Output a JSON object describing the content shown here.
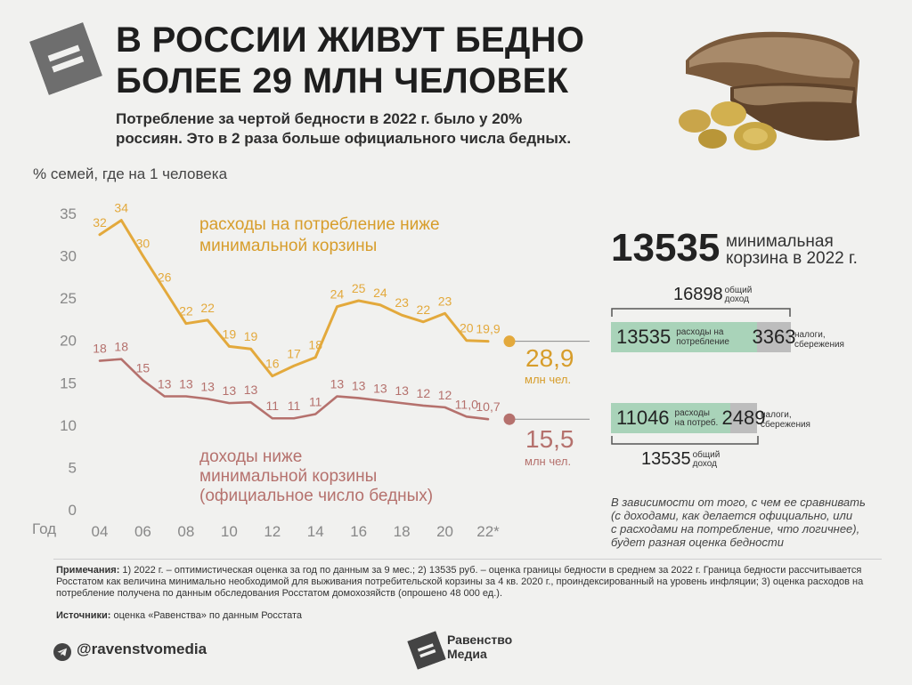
{
  "header": {
    "title_line1": "В России живут бедно",
    "title_line2": "более 29 млн человек",
    "subtitle_line1": "Потребление за чертой бедности в 2022 г. было у 20%",
    "subtitle_line2": "россиян. Это в 2 раза больше официального числа бедных."
  },
  "chart": {
    "ylabel": "% семей, где на 1 человека",
    "x_axis_title": "Год",
    "annotation_consumption_line1": "расходы на потребление ниже",
    "annotation_consumption_line2": "минимальной корзины",
    "annotation_income_line1": "доходы ниже",
    "annotation_income_line2": "минимальной корзины",
    "annotation_income_line3": "(официальное число бедных)",
    "consumption_people": "28,9",
    "consumption_people_unit": "млн чел.",
    "income_people": "15,5",
    "income_people_unit": "млн чел."
  },
  "chart_data": {
    "type": "line",
    "xlabel": "Год",
    "ylabel": "% семей, где на 1 человека",
    "ylim": [
      0,
      35
    ],
    "yticks": [
      "0",
      "5",
      "10",
      "15",
      "20",
      "25",
      "30",
      "35"
    ],
    "x": [
      2004,
      2005,
      2006,
      2007,
      2008,
      2009,
      2010,
      2011,
      2012,
      2013,
      2014,
      2015,
      2016,
      2017,
      2018,
      2019,
      2020,
      2021,
      2022
    ],
    "xtick_labels": [
      {
        "x": 2004,
        "label": "04"
      },
      {
        "x": 2006,
        "label": "06"
      },
      {
        "x": 2008,
        "label": "08"
      },
      {
        "x": 2010,
        "label": "10"
      },
      {
        "x": 2012,
        "label": "12"
      },
      {
        "x": 2014,
        "label": "14"
      },
      {
        "x": 2016,
        "label": "16"
      },
      {
        "x": 2018,
        "label": "18"
      },
      {
        "x": 2020,
        "label": "20"
      },
      {
        "x": 2022,
        "label": "22*"
      }
    ],
    "series": [
      {
        "name": "расходы на потребление ниже минимальной корзины",
        "color": "#e3a93c",
        "values": [
          32.5,
          34.2,
          30,
          26,
          22,
          22.4,
          19.3,
          19,
          15.8,
          17,
          18,
          24,
          24.7,
          24.2,
          23,
          22.2,
          23.2,
          20,
          19.9
        ],
        "labels": [
          "32",
          "34",
          "30",
          "26",
          "22",
          "22",
          "19",
          "19",
          "16",
          "17",
          "18",
          "24",
          "25",
          "24",
          "23",
          "22",
          "23",
          "20",
          "19,9"
        ]
      },
      {
        "name": "доходы ниже минимальной корзины (официальное число бедных)",
        "color": "#b5716d",
        "values": [
          17.6,
          17.8,
          15.3,
          13.4,
          13.4,
          13.1,
          12.6,
          12.7,
          10.8,
          10.8,
          11.3,
          13.4,
          13.2,
          12.9,
          12.6,
          12.3,
          12.1,
          11,
          10.7
        ],
        "labels": [
          "18",
          "18",
          "15",
          "13",
          "13",
          "13",
          "13",
          "13",
          "11",
          "11",
          "11",
          "13",
          "13",
          "13",
          "13",
          "12",
          "12",
          "11,0",
          "10,7"
        ]
      }
    ]
  },
  "budget": {
    "min_basket_value": "13535",
    "min_basket_label_line1": "минимальная",
    "min_basket_label_line2": "корзина в 2022 г.",
    "top_total_value": "16898",
    "top_total_label_line1": "общий",
    "top_total_label_line2": "доход",
    "top_consumption_value": "13535",
    "top_consumption_label_line1": "расходы на",
    "top_consumption_label_line2": "потребление",
    "top_savings_value": "3363",
    "top_savings_label_line1": "налоги,",
    "top_savings_label_line2": "сбережения",
    "bottom_consumption_value": "11046",
    "bottom_consumption_label_line1": "расходы",
    "bottom_consumption_label_line2": "на потреб.",
    "bottom_savings_value": "2489",
    "bottom_savings_label_line1": "налоги,",
    "bottom_savings_label_line2": "сбережения",
    "bottom_total_value": "13535",
    "bottom_total_label_line1": "общий",
    "bottom_total_label_line2": "доход",
    "note_line1": "В зависимости от того, с чем ее сравнивать",
    "note_line2": "(с доходами, как делается официально, или",
    "note_line3": "с расходами на потребление, что логичнее),",
    "note_line4": "будет разная оценка бедности",
    "colors": {
      "consumption": "#a9d3b9",
      "savings": "#bdbdbd"
    }
  },
  "footer": {
    "notes_label": "Примечания:",
    "notes_text": " 1) 2022 г. – оптимистическая оценка за год по данным за 9 мес.; 2) 13535 руб. – оценка границы бедности в среднем за 2022 г. Граница бедности рассчитывается Росстатом как величина минимально необходимой для выживания потребительской корзины за 4 кв. 2020 г., проиндексированный на уровень инфляции; 3) оценка расходов на потребление получена по данным обследования Росстатом домохозяйств (опрошено 48 000 ед.).",
    "sources_label": "Источники:",
    "sources_text": " оценка «Равенства» по данным Росстата",
    "handle": "@ravenstvomedia",
    "brand_line1": "Равенство",
    "brand_line2": "Медиа",
    "telegram_icon": "telegram-icon",
    "brand_logo_icon": "equals-logo-icon"
  }
}
